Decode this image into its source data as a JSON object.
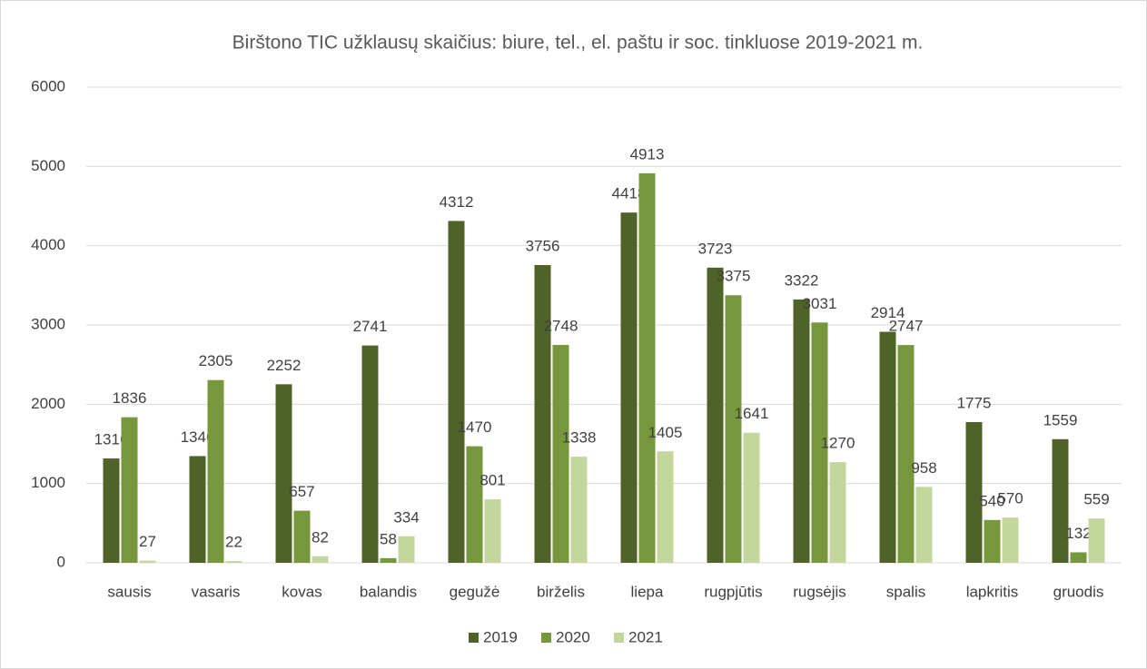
{
  "chart_data": {
    "type": "bar",
    "title": "Birštono TIC užklausų skaičius: biure, tel., el. paštu ir soc. tinkluose 2019-2021 m.",
    "categories": [
      "sausis",
      "vasaris",
      "kovas",
      "balandis",
      "gegužė",
      "birželis",
      "liepa",
      "rugpjūtis",
      "rugsėjis",
      "spalis",
      "lapkritis",
      "gruodis"
    ],
    "series": [
      {
        "name": "2019",
        "color": "#4f6228",
        "values": [
          1316,
          1346,
          2252,
          2741,
          4312,
          3756,
          4418,
          3723,
          3322,
          2914,
          1775,
          1559
        ]
      },
      {
        "name": "2020",
        "color": "#77973d",
        "values": [
          1836,
          2305,
          657,
          58,
          1470,
          2748,
          4913,
          3375,
          3031,
          2747,
          540,
          132
        ]
      },
      {
        "name": "2021",
        "color": "#c3d69b",
        "values": [
          27,
          22,
          82,
          334,
          801,
          1338,
          1405,
          1641,
          1270,
          958,
          570,
          559
        ]
      }
    ],
    "ylim": [
      0,
      6000
    ],
    "yticks": [
      0,
      1000,
      2000,
      3000,
      4000,
      5000,
      6000
    ],
    "grid": true,
    "legend": "bottom"
  }
}
